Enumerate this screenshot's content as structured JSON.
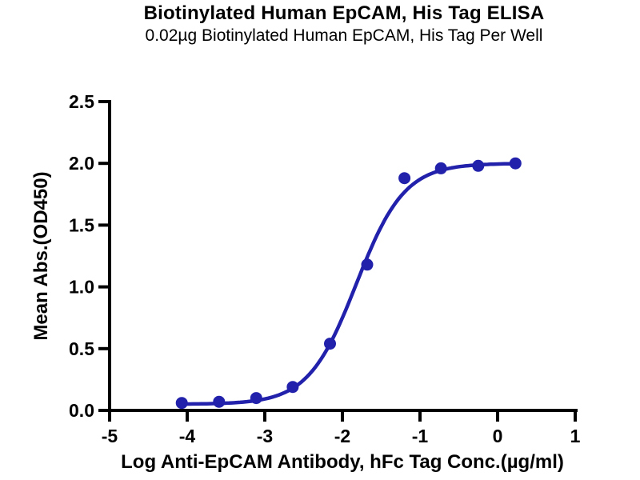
{
  "page": {
    "title": "Biotinylated Human EpCAM, His Tag ELISA",
    "subtitle": "0.02µg Biotinylated Human EpCAM, His Tag Per Well"
  },
  "colors": {
    "curve": "#2121ac",
    "marker": "#2121ac",
    "axis": "#000000",
    "text": "#000000",
    "background": "#ffffff"
  },
  "chart_data": {
    "type": "scatter",
    "title": "Biotinylated Human EpCAM, His Tag ELISA",
    "subtitle": "0.02µg Biotinylated Human EpCAM, His Tag Per Well",
    "xlabel": "Log Anti-EpCAM Antibody, hFc Tag Conc.(µg/ml)",
    "ylabel": "Mean Abs.(OD450)",
    "xlim": [
      -5,
      1
    ],
    "ylim": [
      0,
      2.5
    ],
    "xticks": [
      -5,
      -4,
      -3,
      -2,
      -1,
      0,
      1
    ],
    "xtick_labels": [
      "-5",
      "-4",
      "-3",
      "-2",
      "-1",
      "0",
      "1"
    ],
    "yticks": [
      0,
      0.5,
      1.0,
      1.5,
      2.0,
      2.5
    ],
    "ytick_labels": [
      "0.0",
      "0.5",
      "1.0",
      "1.5",
      "2.0",
      "2.5"
    ],
    "grid": false,
    "legend": false,
    "series": [
      {
        "marker": "circle",
        "x": [
          -4.07,
          -3.59,
          -3.11,
          -2.64,
          -2.16,
          -1.68,
          -1.2,
          -0.73,
          -0.25,
          0.23
        ],
        "y": [
          0.06,
          0.07,
          0.1,
          0.19,
          0.54,
          1.18,
          1.88,
          1.96,
          1.98,
          2.0
        ]
      }
    ],
    "fit_curve": {
      "model": "4PL sigmoidal dose-response",
      "bottom": 0.05,
      "top": 2.0,
      "log_ec50": -1.82,
      "hill_slope": 1.4,
      "x_start": -4.07,
      "x_end": 0.23
    }
  }
}
